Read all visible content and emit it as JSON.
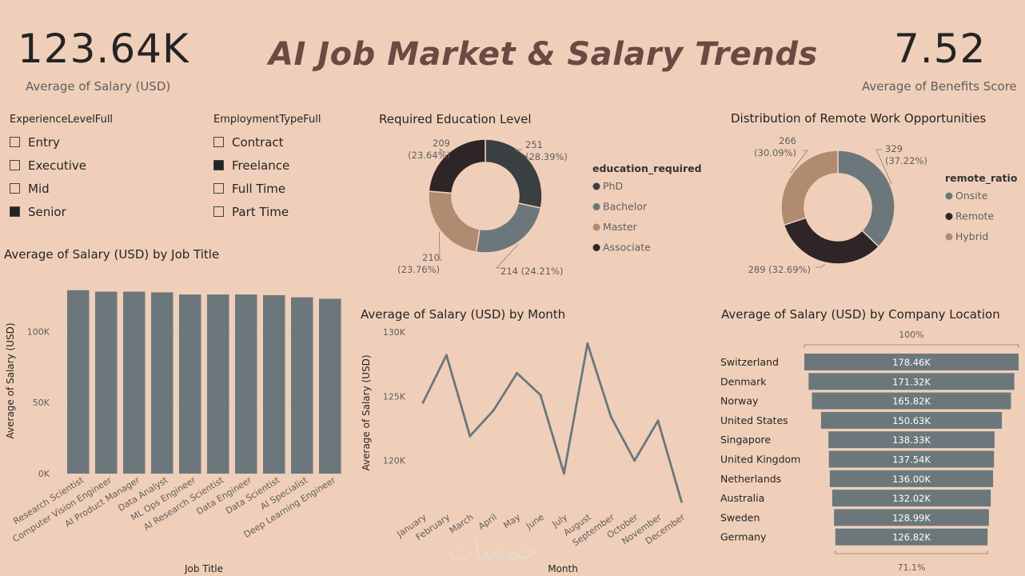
{
  "header": {
    "title": "AI Job Market & Salary Trends",
    "kpi_salary": {
      "value": "123.64K",
      "label": "Average of Salary (USD)"
    },
    "kpi_benefits": {
      "value": "7.52",
      "label": "Average of Benefits Score"
    }
  },
  "slicers": {
    "experience": {
      "title": "ExperienceLevelFull",
      "items": [
        {
          "label": "Entry",
          "checked": false
        },
        {
          "label": "Executive",
          "checked": false
        },
        {
          "label": "Mid",
          "checked": false
        },
        {
          "label": "Senior",
          "checked": true
        }
      ]
    },
    "employment": {
      "title": "EmploymentTypeFull",
      "items": [
        {
          "label": "Contract",
          "checked": false
        },
        {
          "label": "Freelance",
          "checked": true
        },
        {
          "label": "Full Time",
          "checked": false
        },
        {
          "label": "Part Time",
          "checked": false
        }
      ]
    }
  },
  "colors": {
    "background": "#f0cfba",
    "slate": "#6b777b",
    "dark": "#3a3f41",
    "brown": "#b18b70",
    "black": "#2f2426"
  },
  "watermark": "خمسات",
  "chart_data": [
    {
      "id": "education",
      "type": "pie",
      "title": "Required Education Level",
      "legend_title": "education_required",
      "categories": [
        "PhD",
        "Bachelor",
        "Master",
        "Associate"
      ],
      "values": [
        251,
        214,
        210,
        209
      ],
      "labels": [
        "251\n(28.39%)",
        "214 (24.21%)",
        "210\n(23.76%)",
        "209\n(23.64%)"
      ],
      "colors": [
        "#3a3f41",
        "#6b777b",
        "#b18b70",
        "#2f2426"
      ],
      "legend_placement": "right"
    },
    {
      "id": "remote",
      "type": "pie",
      "title": "Distribution of Remote Work Opportunities",
      "legend_title": "remote_ratio",
      "categories": [
        "Onsite",
        "Remote",
        "Hybrid"
      ],
      "values": [
        329,
        289,
        266
      ],
      "labels": [
        "329\n(37.22%)",
        "289 (32.69%)",
        "266\n(30.09%)"
      ],
      "colors": [
        "#6b777b",
        "#2f2426",
        "#b18b70"
      ],
      "legend_placement": "right"
    },
    {
      "id": "job_title",
      "type": "bar",
      "title": "Average of Salary (USD) by Job Title",
      "xlabel": "Job Title",
      "ylabel": "Average of Salary (USD)",
      "categories": [
        "Research Scientist",
        "Computer Vision Engineer",
        "AI Product Manager",
        "Data Analyst",
        "ML Ops Engineer",
        "AI Research Scientist",
        "Data Engineer",
        "Data Scientist",
        "AI Specialist",
        "Deep Learning Engineer"
      ],
      "values": [
        129000,
        128000,
        128000,
        127500,
        126000,
        126000,
        126000,
        125500,
        124000,
        123000
      ],
      "yticks": [
        "0K",
        "50K",
        "100K"
      ],
      "ylim": [
        0,
        130000
      ],
      "color": "#6b777b"
    },
    {
      "id": "month",
      "type": "line",
      "title": "Average of Salary (USD) by Month",
      "xlabel": "Month",
      "ylabel": "Average of Salary (USD)",
      "categories": [
        "January",
        "February",
        "March",
        "April",
        "May",
        "June",
        "July",
        "August",
        "September",
        "October",
        "November",
        "December"
      ],
      "values": [
        124500,
        128200,
        121900,
        123900,
        126800,
        125100,
        119000,
        129100,
        123400,
        120000,
        123100,
        116800
      ],
      "yticks": [
        "120K",
        "125K",
        "130K"
      ],
      "ylim": [
        116500,
        130000
      ],
      "color": "#6b777b"
    },
    {
      "id": "location",
      "type": "bar",
      "orientation": "horizontal-funnel",
      "title": "Average of Salary (USD) by Company Location",
      "categories": [
        "Switzerland",
        "Denmark",
        "Norway",
        "United States",
        "Singapore",
        "United Kingdom",
        "Netherlands",
        "Australia",
        "Sweden",
        "Germany"
      ],
      "values": [
        178460,
        171320,
        165820,
        150630,
        138330,
        137540,
        136000,
        132020,
        128990,
        126820
      ],
      "value_labels": [
        "178.46K",
        "171.32K",
        "165.82K",
        "150.63K",
        "138.33K",
        "137.54K",
        "136.00K",
        "132.02K",
        "128.99K",
        "126.82K"
      ],
      "top_pct": "100%",
      "bottom_pct": "71.1%",
      "color": "#6b777b"
    }
  ]
}
